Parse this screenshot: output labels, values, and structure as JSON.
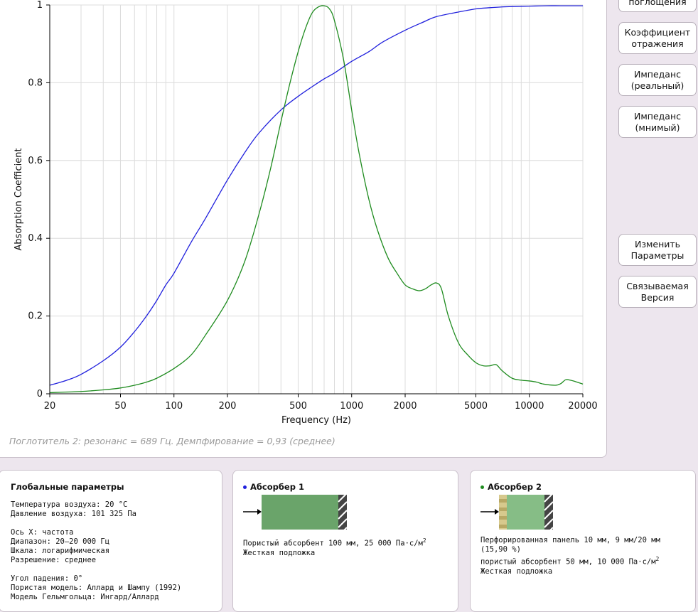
{
  "chart_data": {
    "type": "line",
    "xlabel": "Frequency (Hz)",
    "ylabel": "Absorption Coefficient",
    "xscale": "log",
    "xlim": [
      20,
      20000
    ],
    "ylim": [
      0,
      1
    ],
    "grid": true,
    "x_ticks": [
      20,
      50,
      100,
      200,
      500,
      1000,
      2000,
      5000,
      10000,
      20000
    ],
    "x_tick_labels": [
      "20",
      "50",
      "100",
      "200",
      "500",
      "1000",
      "2000",
      "5000",
      "10000",
      "20000"
    ],
    "y_ticks": [
      0,
      0.2,
      0.4,
      0.6,
      0.8,
      1
    ],
    "y_tick_labels": [
      "0",
      "0.2",
      "0.4",
      "0.6",
      "0.8",
      "1"
    ],
    "series": [
      {
        "color": "#2020dd",
        "x": [
          20,
          25,
          30,
          40,
          50,
          60,
          70,
          80,
          90,
          100,
          125,
          150,
          200,
          250,
          300,
          400,
          500,
          600,
          700,
          800,
          1000,
          1250,
          1500,
          2000,
          2500,
          3000,
          4000,
          5000,
          6000,
          7000,
          8000,
          10000,
          12500,
          15000,
          20000
        ],
        "values": [
          0.022,
          0.035,
          0.05,
          0.085,
          0.12,
          0.16,
          0.2,
          0.24,
          0.28,
          0.31,
          0.39,
          0.45,
          0.55,
          0.62,
          0.67,
          0.73,
          0.765,
          0.79,
          0.81,
          0.825,
          0.855,
          0.88,
          0.905,
          0.935,
          0.955,
          0.97,
          0.982,
          0.99,
          0.993,
          0.995,
          0.996,
          0.997,
          0.998,
          0.998,
          0.998
        ]
      },
      {
        "color": "#1e8b1e",
        "x": [
          20,
          30,
          40,
          50,
          60,
          70,
          80,
          100,
          125,
          150,
          200,
          250,
          300,
          350,
          400,
          450,
          500,
          550,
          600,
          650,
          700,
          750,
          800,
          900,
          1000,
          1100,
          1250,
          1400,
          1600,
          1800,
          2000,
          2200,
          2400,
          2600,
          2800,
          3000,
          3200,
          3500,
          4000,
          4500,
          5000,
          5500,
          6000,
          6500,
          7000,
          8000,
          9000,
          10000,
          11000,
          12000,
          14000,
          15000,
          16000,
          17000,
          18000,
          20000
        ],
        "values": [
          0.003,
          0.006,
          0.01,
          0.015,
          0.022,
          0.03,
          0.04,
          0.065,
          0.1,
          0.15,
          0.24,
          0.34,
          0.46,
          0.58,
          0.7,
          0.8,
          0.88,
          0.94,
          0.98,
          0.995,
          0.998,
          0.99,
          0.96,
          0.86,
          0.73,
          0.62,
          0.5,
          0.42,
          0.35,
          0.31,
          0.28,
          0.27,
          0.265,
          0.27,
          0.28,
          0.285,
          0.27,
          0.2,
          0.13,
          0.1,
          0.08,
          0.072,
          0.072,
          0.075,
          0.06,
          0.04,
          0.035,
          0.033,
          0.03,
          0.025,
          0.022,
          0.026,
          0.036,
          0.035,
          0.032,
          0.025
        ]
      }
    ]
  },
  "status": "Поглотитель 2: резонанс = 689 Гц. Демпфирование = 0,93 (среднее)",
  "buttons": {
    "absorption": "поглощения",
    "reflection_l1": "Коэффициент",
    "reflection_l2": "отражения",
    "imp_real_l1": "Импеданс",
    "imp_real_l2": "(реальный)",
    "imp_imag_l1": "Импеданс",
    "imp_imag_l2": "(мнимый)",
    "change_l1": "Изменить",
    "change_l2": "Параметры",
    "linkable_l1": "Связываемая",
    "linkable_l2": "Версия"
  },
  "global": {
    "title": "Глобальные параметры",
    "temp": "Температура воздуха: 20 °C",
    "pressure": "Давление воздуха: 101 325 Па",
    "xaxis": "Ось X: частота",
    "range": "Диапазон: 20–20 000 Гц",
    "scale": "Шкала: логарифмическая",
    "resolution": "Разрешение: среднее",
    "angle": "Угол падения: 0°",
    "porous_model": "Пористая модель: Аллард и Шампу (1992)",
    "helmholtz_model": "Модель Гельмгольца: Ингард/Аллард"
  },
  "absorber1": {
    "title": "Абсорбер 1",
    "dot_color": "#2020dd",
    "layer_color": "#6aa46a",
    "line1": "Пористый абсорбент 100 мм, 25 000 Па·с/м",
    "line1_sup": "2",
    "line2": "Жесткая подложка"
  },
  "absorber2": {
    "title": "Абсорбер 2",
    "dot_color": "#1e8b1e",
    "layer_color": "#86bd86",
    "panel_color": "#d7c98d",
    "line1": "Перфорированная панель 10 мм, 9 мм/20 мм",
    "line2": "(15,90 %)",
    "line3": "пористый абсорбент 50 мм, 10 000 Па·с/м",
    "line3_sup": "2",
    "line4": "Жесткая подложка"
  }
}
